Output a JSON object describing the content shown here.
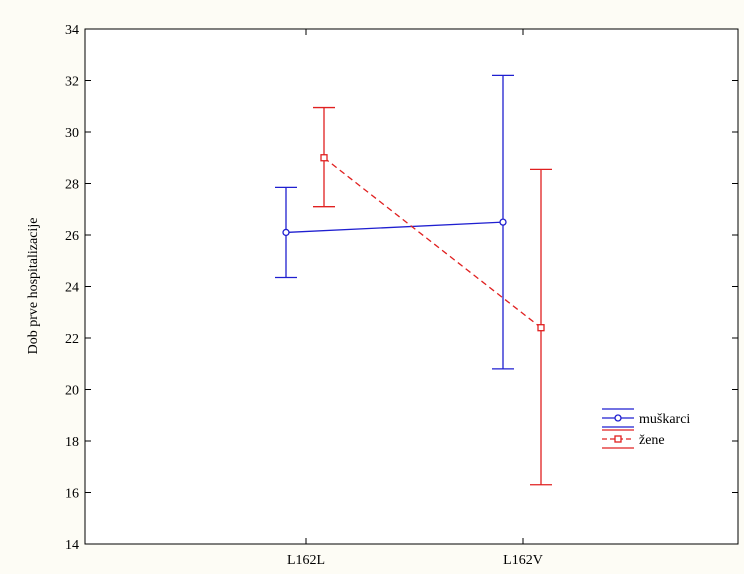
{
  "chart_data": {
    "type": "line",
    "title": "",
    "xlabel": "",
    "ylabel": "Dob prve hospitalizacije",
    "categories": [
      "L162L",
      "L162V"
    ],
    "ylim": [
      14,
      34
    ],
    "yticks": [
      14,
      16,
      18,
      20,
      22,
      24,
      26,
      28,
      30,
      32,
      34
    ],
    "grid": false,
    "legend_position": "right",
    "series": [
      {
        "name": "muškarci",
        "color": "#1f1fd0",
        "marker": "circle",
        "dash": "solid",
        "values": [
          26.1,
          26.5
        ],
        "lower": [
          24.35,
          20.8
        ],
        "upper": [
          27.85,
          32.2
        ]
      },
      {
        "name": "žene",
        "color": "#e02020",
        "marker": "square",
        "dash": "dashed",
        "values": [
          29.0,
          22.4
        ],
        "lower": [
          27.1,
          16.3
        ],
        "upper": [
          30.95,
          28.55
        ]
      }
    ]
  }
}
